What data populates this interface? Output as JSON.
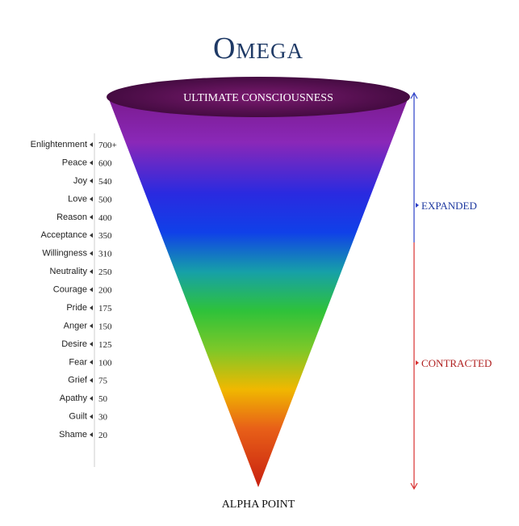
{
  "title": "Omega",
  "top_label": "ULTIMATE CONSCIOUSNESS",
  "bottom_label": "ALPHA POINT",
  "expanded_label": "EXPANDED",
  "contracted_label": "CONTRACTED",
  "levels": [
    {
      "name": "Enlightenment",
      "value": "700+"
    },
    {
      "name": "Peace",
      "value": 600
    },
    {
      "name": "Joy",
      "value": 540
    },
    {
      "name": "Love",
      "value": 500
    },
    {
      "name": "Reason",
      "value": 400
    },
    {
      "name": "Acceptance",
      "value": 350
    },
    {
      "name": "Willingness",
      "value": 310
    },
    {
      "name": "Neutrality",
      "value": 250
    },
    {
      "name": "Courage",
      "value": 200
    },
    {
      "name": "Pride",
      "value": 175
    },
    {
      "name": "Anger",
      "value": 150
    },
    {
      "name": "Desire",
      "value": 125
    },
    {
      "name": "Fear",
      "value": 100
    },
    {
      "name": "Grief",
      "value": 75
    },
    {
      "name": "Apathy",
      "value": 50
    },
    {
      "name": "Guilt",
      "value": 30
    },
    {
      "name": "Shame",
      "value": 20
    }
  ]
}
